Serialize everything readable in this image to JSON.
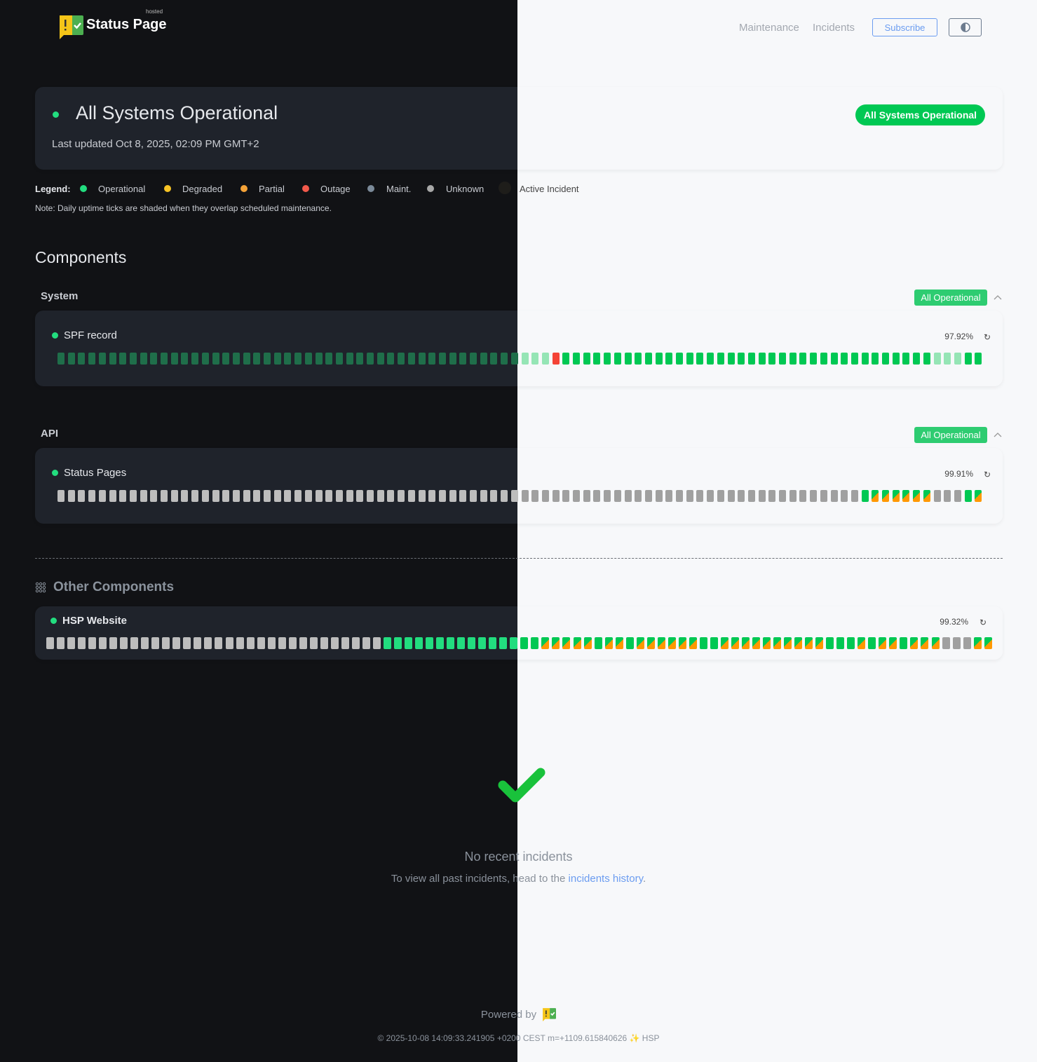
{
  "brand": {
    "name": "Status Page",
    "tag": "hosted"
  },
  "nav": {
    "maintenance": "Maintenance",
    "incidents": "Incidents",
    "subscribe": "Subscribe",
    "theme_toggle_icon": "contrast-icon"
  },
  "overall": {
    "title": "All Systems Operational",
    "updated": "Last updated Oct 8, 2025, 02:09 PM GMT+2",
    "pill": "All Systems Operational"
  },
  "legend": {
    "title": "Legend:",
    "items": [
      {
        "label": "Operational",
        "color": "#22dd7f"
      },
      {
        "label": "Degraded",
        "color": "#f7c325"
      },
      {
        "label": "Partial",
        "color": "#f5a338"
      },
      {
        "label": "Outage",
        "color": "#f2594b"
      },
      {
        "label": "Maint.",
        "color": "#7b8a99"
      },
      {
        "label": "Unknown",
        "color": "#a8a8a8"
      },
      {
        "label": "Active Incident",
        "color": "#1e1d1a"
      }
    ],
    "note": "Note: Daily uptime ticks are shaded when they overlap scheduled maintenance."
  },
  "components_title": "Components",
  "groups": [
    {
      "label": "System",
      "badge": "All Operational",
      "components": [
        {
          "name": "SPF record",
          "uptime": "97.92%",
          "ticks": [
            {
              "state": "operational-maintenance",
              "days": 48
            },
            {
              "state": "outage",
              "days": 1
            },
            {
              "state": "operational",
              "days": 36
            },
            {
              "state": "operational-maintenance",
              "days": 3
            },
            {
              "state": "operational",
              "days": 2
            }
          ]
        }
      ]
    },
    {
      "label": "API",
      "badge": "All Operational",
      "components": [
        {
          "name": "Status Pages",
          "uptime": "99.91%",
          "ticks": [
            {
              "state": "unknown",
              "days": 78
            },
            {
              "state": "operational",
              "days": 1
            },
            {
              "state": "operational-partial",
              "days": 6
            },
            {
              "state": "unknown",
              "days": 3
            },
            {
              "state": "operational",
              "days": 1
            },
            {
              "state": "operational-partial",
              "days": 1
            }
          ]
        }
      ]
    }
  ],
  "other": {
    "title": "Other Components",
    "components": [
      {
        "name": "HSP Website",
        "uptime": "99.32%",
        "ticks": [
          {
            "state": "unknown",
            "days": 32
          },
          {
            "state": "operational",
            "days": 15
          },
          {
            "state": "operational-partial",
            "days": 5
          },
          {
            "state": "operational",
            "days": 1
          },
          {
            "state": "operational-partial",
            "days": 2
          },
          {
            "state": "operational",
            "days": 1
          },
          {
            "state": "operational-partial",
            "days": 6
          },
          {
            "state": "operational",
            "days": 2
          },
          {
            "state": "operational-partial",
            "days": 10
          },
          {
            "state": "operational",
            "days": 3
          },
          {
            "state": "operational-partial",
            "days": 1
          },
          {
            "state": "operational",
            "days": 1
          },
          {
            "state": "operational-partial",
            "days": 2
          },
          {
            "state": "operational",
            "days": 1
          },
          {
            "state": "operational-partial",
            "days": 3
          },
          {
            "state": "unknown",
            "days": 3
          },
          {
            "state": "operational-partial",
            "days": 2
          }
        ]
      }
    ]
  },
  "incidents": {
    "empty_title": "No recent incidents",
    "empty_text": "To view all past incidents, head to the",
    "history_link": "incidents history",
    "period": "."
  },
  "footer": {
    "powered_by": "Powered by",
    "build": "© 2025-10-08 14:09:33.241905 +0200 CEST m=+1109.615840626 ✨ HSP"
  }
}
